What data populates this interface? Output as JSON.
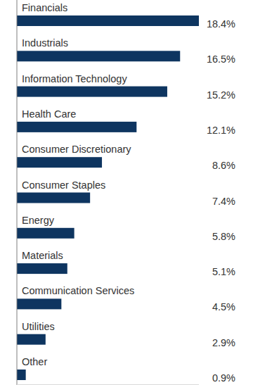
{
  "chart_data": {
    "type": "bar",
    "orientation": "horizontal",
    "categories": [
      "Financials",
      "Industrials",
      "Information Technology",
      "Health Care",
      "Consumer Discretionary",
      "Consumer Staples",
      "Energy",
      "Materials",
      "Communication Services",
      "Utilities",
      "Other"
    ],
    "values": [
      18.4,
      16.5,
      15.2,
      12.1,
      8.6,
      7.4,
      5.8,
      5.1,
      4.5,
      2.9,
      0.9
    ],
    "value_labels": [
      "18.4%",
      "16.5%",
      "15.2%",
      "12.1%",
      "8.6%",
      "7.4%",
      "5.8%",
      "5.1%",
      "4.5%",
      "2.9%",
      "0.9%"
    ],
    "color": "#0e3560",
    "xlim": [
      0,
      18.4
    ],
    "data_labels": true,
    "tick_labels": false,
    "grid": false
  }
}
